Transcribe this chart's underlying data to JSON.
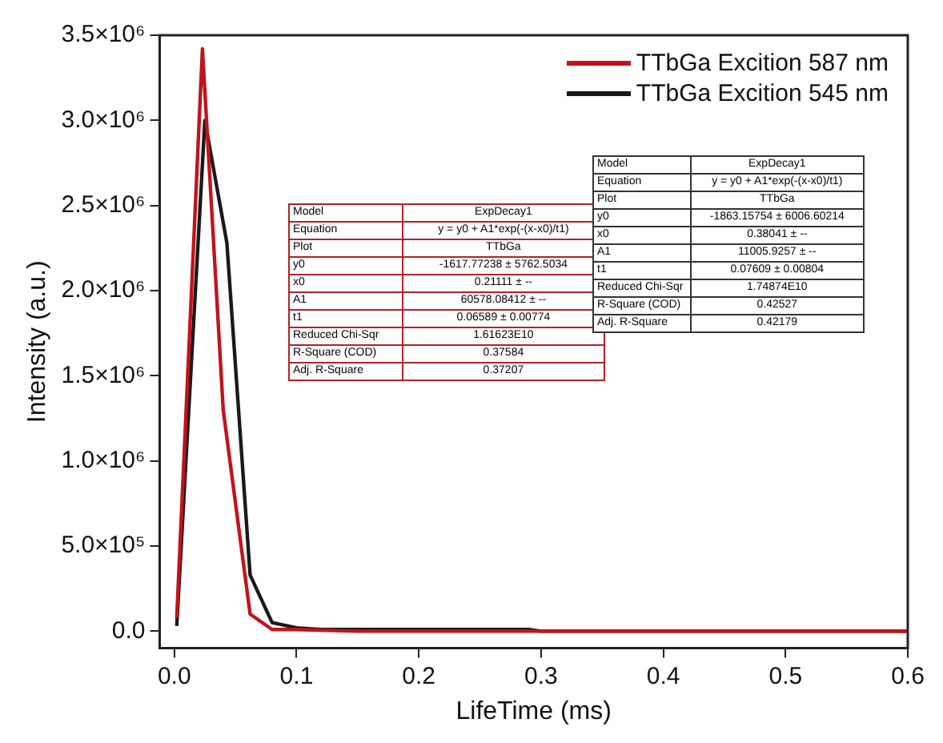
{
  "chart_data": {
    "type": "line",
    "xlabel": "LifeTime (ms)",
    "ylabel": "Intensity (a.u.)",
    "series": [
      {
        "name": "TTbGa Excition 587 nm",
        "color": "#c0141c",
        "x": [
          0.002,
          0.023,
          0.04,
          0.062,
          0.08,
          0.1,
          0.15,
          0.6
        ],
        "values": [
          80000,
          3420000,
          1300000,
          100000,
          10000,
          10000,
          0,
          0
        ]
      },
      {
        "name": "TTbGa Excition 545 nm",
        "color": "#1a1a1a",
        "x": [
          0.002,
          0.025,
          0.043,
          0.062,
          0.08,
          0.1,
          0.12,
          0.29,
          0.3,
          0.6
        ],
        "values": [
          30000,
          3000000,
          2280000,
          330000,
          50000,
          20000,
          10000,
          10000,
          0,
          0
        ]
      }
    ],
    "xlim": [
      -0.012,
      0.6
    ],
    "xticks": [
      {
        "value": 0,
        "label": "0.0"
      },
      0.1,
      0.2,
      0.3,
      0.4,
      0.5,
      0.6
    ],
    "ylim": [
      -100000,
      3500000
    ],
    "yticks": [
      {
        "value": 0,
        "label": "0.0"
      },
      {
        "value": 500000,
        "label": "5.0×10⁵"
      },
      {
        "value": 1000000,
        "label": "1.0×10⁶"
      },
      {
        "value": 1500000,
        "label": "1.5×10⁶"
      },
      {
        "value": 2000000,
        "label": "2.0×10⁶"
      },
      {
        "value": 2500000,
        "label": "2.5×10⁶"
      },
      {
        "value": 3000000,
        "label": "3.0×10⁶"
      },
      {
        "value": 3500000,
        "label": "3.5×10⁶"
      }
    ],
    "grid": false,
    "legend": "top right",
    "marker": "none",
    "line_style": "solid",
    "annotations": [
      "Model",
      "ExpDecay1",
      "Equation",
      "y = y0 + A1*exp(-(x-x0)/t1)",
      "Plot",
      "TTbGa",
      "y0",
      "-1617.77238 ± 5762.5034",
      "x0",
      "0.21111 ± --",
      "A1",
      "60578.08412 ± --",
      "t1",
      "0.06589 ± 0.00774",
      "Reduced Chi-Sqr",
      "1.61623E10",
      "R-Square (COD)",
      "0.37584",
      "Adj. R-Square",
      "0.37207",
      "Model",
      "ExpDecay1",
      "Equation",
      "y = y0 + A1*exp(-(x-x0)/t1)",
      "Plot",
      "TTbGa",
      "y0",
      "-1863.15754 ± 6006.60214",
      "x0",
      "0.38041 ± --",
      "A1",
      "11005.9257 ± --",
      "t1",
      "0.07609 ± 0.00804",
      "Reduced Chi-Sqr",
      "1.74874E10",
      "R-Square (COD)",
      "0.42527",
      "Adj. R-Square",
      "0.42179"
    ]
  }
}
